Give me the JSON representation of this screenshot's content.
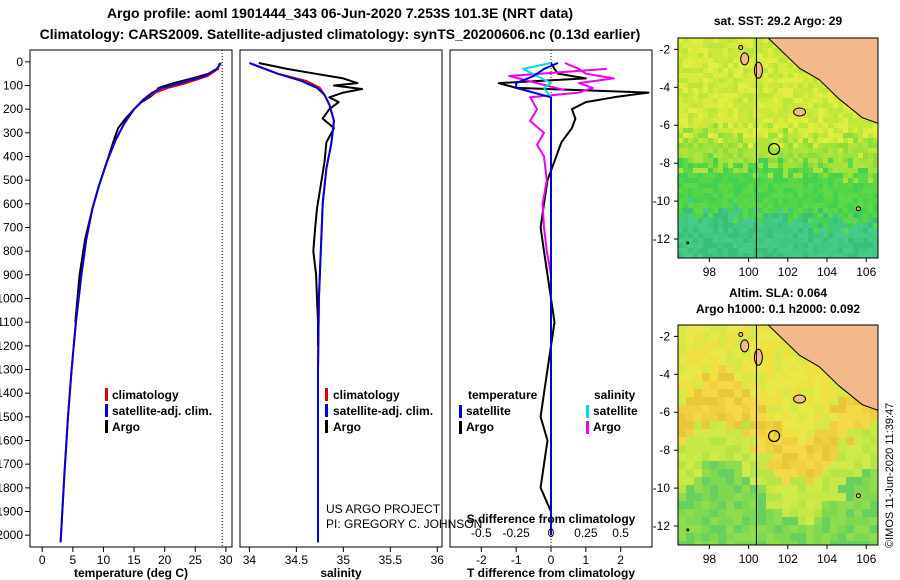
{
  "header": {
    "title_line1": "Argo profile: aoml 1901444_343 06-Jun-2020 7.253S 101.3E (NRT data)",
    "title_line2": "Climatology: CARS2009. Satellite-adjusted climatology: synTS_20200606.nc (0.13d earlier)"
  },
  "colors": {
    "climatology": "#dd0000",
    "satellite": "#0000dd",
    "argo": "#000000",
    "sat_salinity": "#00dddd",
    "argo_salinity": "#ee00ee",
    "land": "#f4b98a"
  },
  "chart_data": [
    {
      "type": "line",
      "id": "temperature",
      "xlabel": "temperature (deg C)",
      "xlim": [
        -2,
        31
      ],
      "ylim": [
        2050,
        -50
      ],
      "xticks": [
        0,
        5,
        10,
        15,
        20,
        25,
        30
      ],
      "yticks": [
        0,
        100,
        200,
        300,
        400,
        500,
        600,
        700,
        800,
        900,
        1000,
        1100,
        1200,
        1300,
        1400,
        1500,
        1600,
        1700,
        1800,
        1900,
        2000
      ],
      "legend": [
        "climatology",
        "satellite-adj. clim.",
        "Argo"
      ],
      "series": [
        {
          "name": "climatology",
          "pressure": [
            5,
            30,
            60,
            90,
            110,
            130,
            160,
            200,
            260,
            330,
            420,
            520,
            620,
            750,
            900,
            1100,
            1300,
            1500,
            1750,
            2030
          ],
          "values": [
            29.0,
            28.7,
            27.0,
            23.5,
            20.5,
            18.5,
            16.5,
            15.0,
            13.4,
            12.0,
            10.6,
            9.3,
            8.2,
            7.2,
            6.4,
            5.5,
            4.8,
            4.2,
            3.6,
            3.0
          ]
        },
        {
          "name": "satellite",
          "pressure": [
            5,
            30,
            60,
            90,
            110,
            130,
            160,
            200,
            260,
            330,
            420,
            520,
            620,
            750,
            900,
            1100,
            1300,
            1500,
            1750,
            2030
          ],
          "values": [
            29.2,
            28.5,
            26.5,
            22.5,
            19.5,
            18.0,
            16.5,
            15.0,
            13.4,
            12.0,
            10.6,
            9.3,
            8.2,
            7.2,
            6.4,
            5.5,
            4.8,
            4.2,
            3.6,
            3.0
          ]
        },
        {
          "name": "Argo",
          "pressure": [
            5,
            30,
            50,
            70,
            90,
            110,
            130,
            150,
            170,
            200,
            240,
            280,
            340,
            420,
            520,
            620,
            750,
            900,
            1100
          ],
          "values": [
            29.0,
            28.7,
            27.2,
            24.5,
            21.5,
            19.0,
            18.5,
            17.5,
            16.2,
            15.0,
            13.6,
            12.4,
            11.6,
            10.6,
            9.3,
            8.2,
            7.0,
            6.1,
            5.4
          ]
        }
      ]
    },
    {
      "type": "line",
      "id": "salinity",
      "xlabel": "salinity",
      "xlim": [
        33.9,
        36.05
      ],
      "ylim": [
        2050,
        -50
      ],
      "xticks": [
        34,
        34.5,
        35,
        35.5,
        36
      ],
      "legend": [
        "climatology",
        "satellite-adj. clim.",
        "Argo"
      ],
      "series": [
        {
          "name": "climatology",
          "pressure": [
            5,
            50,
            80,
            110,
            140,
            180,
            250,
            350,
            450,
            600,
            800,
            1000,
            1300,
            1600,
            2030
          ],
          "values": [
            34.0,
            34.3,
            34.6,
            34.75,
            34.8,
            34.85,
            34.9,
            34.87,
            34.82,
            34.78,
            34.76,
            34.74,
            34.73,
            34.73,
            34.73
          ]
        },
        {
          "name": "satellite",
          "pressure": [
            5,
            50,
            80,
            110,
            140,
            180,
            250,
            350,
            450,
            600,
            800,
            1000,
            1300,
            1600,
            2030
          ],
          "values": [
            34.0,
            34.3,
            34.55,
            34.72,
            34.8,
            34.85,
            34.9,
            34.87,
            34.82,
            34.78,
            34.76,
            34.74,
            34.73,
            34.73,
            34.73
          ]
        },
        {
          "name": "Argo",
          "pressure": [
            5,
            30,
            50,
            70,
            90,
            100,
            115,
            130,
            150,
            170,
            200,
            240,
            280,
            340,
            420,
            520,
            620,
            700,
            800,
            900,
            1000,
            1100,
            1200
          ],
          "values": [
            34.1,
            34.4,
            34.7,
            35.0,
            35.15,
            34.9,
            35.2,
            35.0,
            34.85,
            34.95,
            34.85,
            34.78,
            34.9,
            34.82,
            34.8,
            34.76,
            34.72,
            34.7,
            34.68,
            34.71,
            34.72,
            34.73,
            34.73
          ]
        }
      ]
    },
    {
      "type": "line",
      "id": "difference",
      "xlabel": "T difference from climatology",
      "top_xlabel": "S difference from climatology",
      "xlim": [
        -2.9,
        2.9
      ],
      "ylim": [
        2050,
        -50
      ],
      "xticks": [
        -2,
        -1,
        0,
        1,
        2
      ],
      "top_ticks": [
        -0.5,
        -0.25,
        0,
        0.25,
        0.5
      ],
      "legend": [
        "temperature",
        "satellite",
        "Argo",
        "salinity",
        "satellite",
        "Argo"
      ],
      "series": [
        {
          "name": "T satellite",
          "pressure": [
            5,
            30,
            60,
            90,
            110,
            150,
            250,
            500,
            1000,
            2000
          ],
          "values": [
            0.2,
            -0.2,
            -0.5,
            -1.0,
            -1.0,
            0.0,
            0.0,
            0.0,
            0.0,
            0.0
          ]
        },
        {
          "name": "T Argo",
          "pressure": [
            5,
            30,
            50,
            70,
            90,
            110,
            130,
            150,
            170,
            200,
            240,
            280,
            340,
            420,
            500,
            600,
            700,
            800,
            900,
            1000,
            1100,
            1200,
            1300,
            1400,
            1500,
            1600,
            1700,
            1800,
            1900,
            2000
          ],
          "values": [
            0,
            0.1,
            0.2,
            1.0,
            -1.5,
            -1.0,
            2.8,
            1.8,
            1.0,
            0.6,
            0.7,
            0.6,
            0.3,
            0.1,
            -0.1,
            -0.2,
            -0.3,
            -0.2,
            -0.1,
            0.0,
            0.1,
            0.0,
            -0.1,
            -0.2,
            -0.3,
            -0.1,
            -0.2,
            -0.3,
            0.0,
            0.0
          ]
        },
        {
          "name": "S satellite",
          "pressure": [
            5,
            30,
            60,
            90,
            110,
            150,
            250,
            500,
            1000,
            2000
          ],
          "values": [
            0.0,
            -0.2,
            -0.1,
            0.0,
            -0.05,
            0.0,
            0.0,
            0.0,
            0.0,
            0.0
          ]
        },
        {
          "name": "S Argo",
          "pressure": [
            5,
            30,
            50,
            70,
            90,
            110,
            130,
            150,
            200,
            250,
            300,
            350,
            400,
            500,
            600,
            700,
            800,
            900,
            1000
          ],
          "values": [
            0.1,
            0.2,
            0.25,
            0.45,
            0.2,
            0.3,
            0.2,
            -0.15,
            -0.1,
            -0.15,
            -0.05,
            -0.1,
            -0.05,
            -0.03,
            -0.06,
            -0.05,
            -0.03,
            0,
            0
          ]
        },
        {
          "name": "S Argo 2",
          "pressure": [
            30,
            60,
            90,
            120
          ],
          "values": [
            0.4,
            -0.3,
            -0.1,
            0.1
          ]
        }
      ]
    },
    {
      "type": "heatmap",
      "id": "sst-map",
      "title": "sat. SST: 29.2 Argo: 29",
      "xticks": [
        98,
        100,
        102,
        104,
        106
      ],
      "yticks": [
        -2,
        -4,
        -6,
        -8,
        -10,
        -12
      ],
      "profile_location": [
        101.3,
        -7.253
      ]
    },
    {
      "type": "heatmap",
      "id": "sla-map",
      "title_line1": "Altim. SLA: 0.064",
      "title_line2": "Argo h1000: 0.1 h2000: 0.092",
      "xticks": [
        98,
        100,
        102,
        104,
        106
      ],
      "yticks": [
        -2,
        -4,
        -6,
        -8,
        -10,
        -12
      ],
      "profile_location": [
        101.3,
        -7.253
      ]
    }
  ],
  "annotations": {
    "credit1": "US ARGO PROJECT",
    "credit2": "PI: GREGORY C. JOHNSON",
    "imos": "©IMOS 11-Jun-2020 11:39:47"
  }
}
